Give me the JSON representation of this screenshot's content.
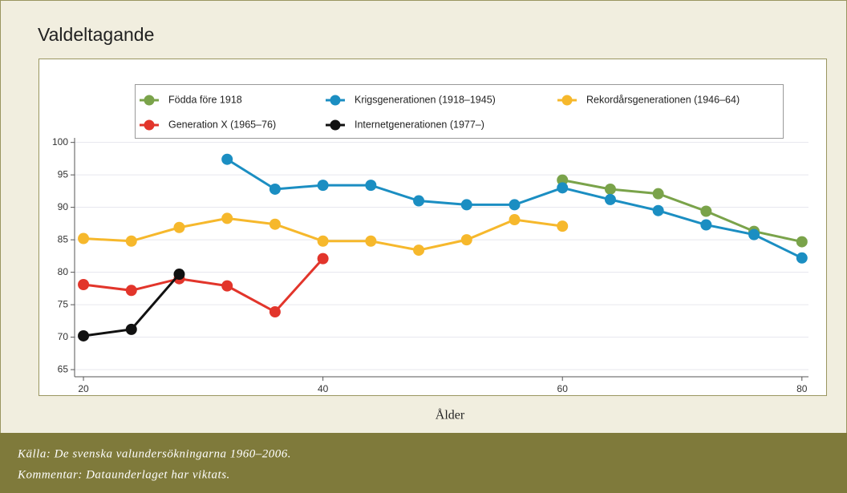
{
  "chart_data": {
    "type": "line",
    "title": "Valdeltagande",
    "xlabel": "Ålder",
    "x": [
      20,
      24,
      28,
      32,
      36,
      40,
      44,
      48,
      52,
      56,
      60,
      64,
      68,
      72,
      76,
      80
    ],
    "series": [
      {
        "name": "Födda före 1918",
        "color": "#7aa34a",
        "values": [
          null,
          null,
          null,
          null,
          null,
          null,
          null,
          null,
          null,
          null,
          94.2,
          92.8,
          92.1,
          89.4,
          86.3,
          84.7
        ]
      },
      {
        "name": "Krigsgenerationen (1918–1945)",
        "color": "#1b8ec2",
        "values": [
          null,
          null,
          null,
          97.4,
          92.8,
          93.4,
          93.4,
          91.0,
          90.4,
          90.4,
          93.0,
          91.2,
          89.5,
          87.3,
          85.8,
          82.2
        ]
      },
      {
        "name": "Rekordårsgenerationen (1946–64)",
        "color": "#f6b82c",
        "values": [
          85.2,
          84.8,
          86.9,
          88.3,
          87.4,
          84.8,
          84.8,
          83.4,
          85.0,
          88.1,
          87.1,
          null,
          null,
          null,
          null,
          null
        ]
      },
      {
        "name": "Generation X (1965–76)",
        "color": "#e2352b",
        "values": [
          78.1,
          77.2,
          79.0,
          77.9,
          73.9,
          82.1,
          null,
          null,
          null,
          null,
          null,
          null,
          null,
          null,
          null,
          null
        ]
      },
      {
        "name": "Internetgenerationen (1977–)",
        "color": "#111111",
        "values": [
          70.2,
          71.2,
          79.7,
          null,
          null,
          null,
          null,
          null,
          null,
          null,
          null,
          null,
          null,
          null,
          null,
          null
        ]
      }
    ],
    "xlim": [
      19.26,
      80.55
    ],
    "xticks": [
      20,
      40,
      60,
      80
    ],
    "ylim": [
      63.9,
      100.7
    ],
    "yticks": [
      65,
      70,
      75,
      80,
      85,
      90,
      95,
      100
    ],
    "grid": true,
    "legend": "top",
    "source": "Källa: De svenska valundersökningarna 1960–2006.",
    "note": "Kommentar: Dataunderlaget har viktats."
  }
}
